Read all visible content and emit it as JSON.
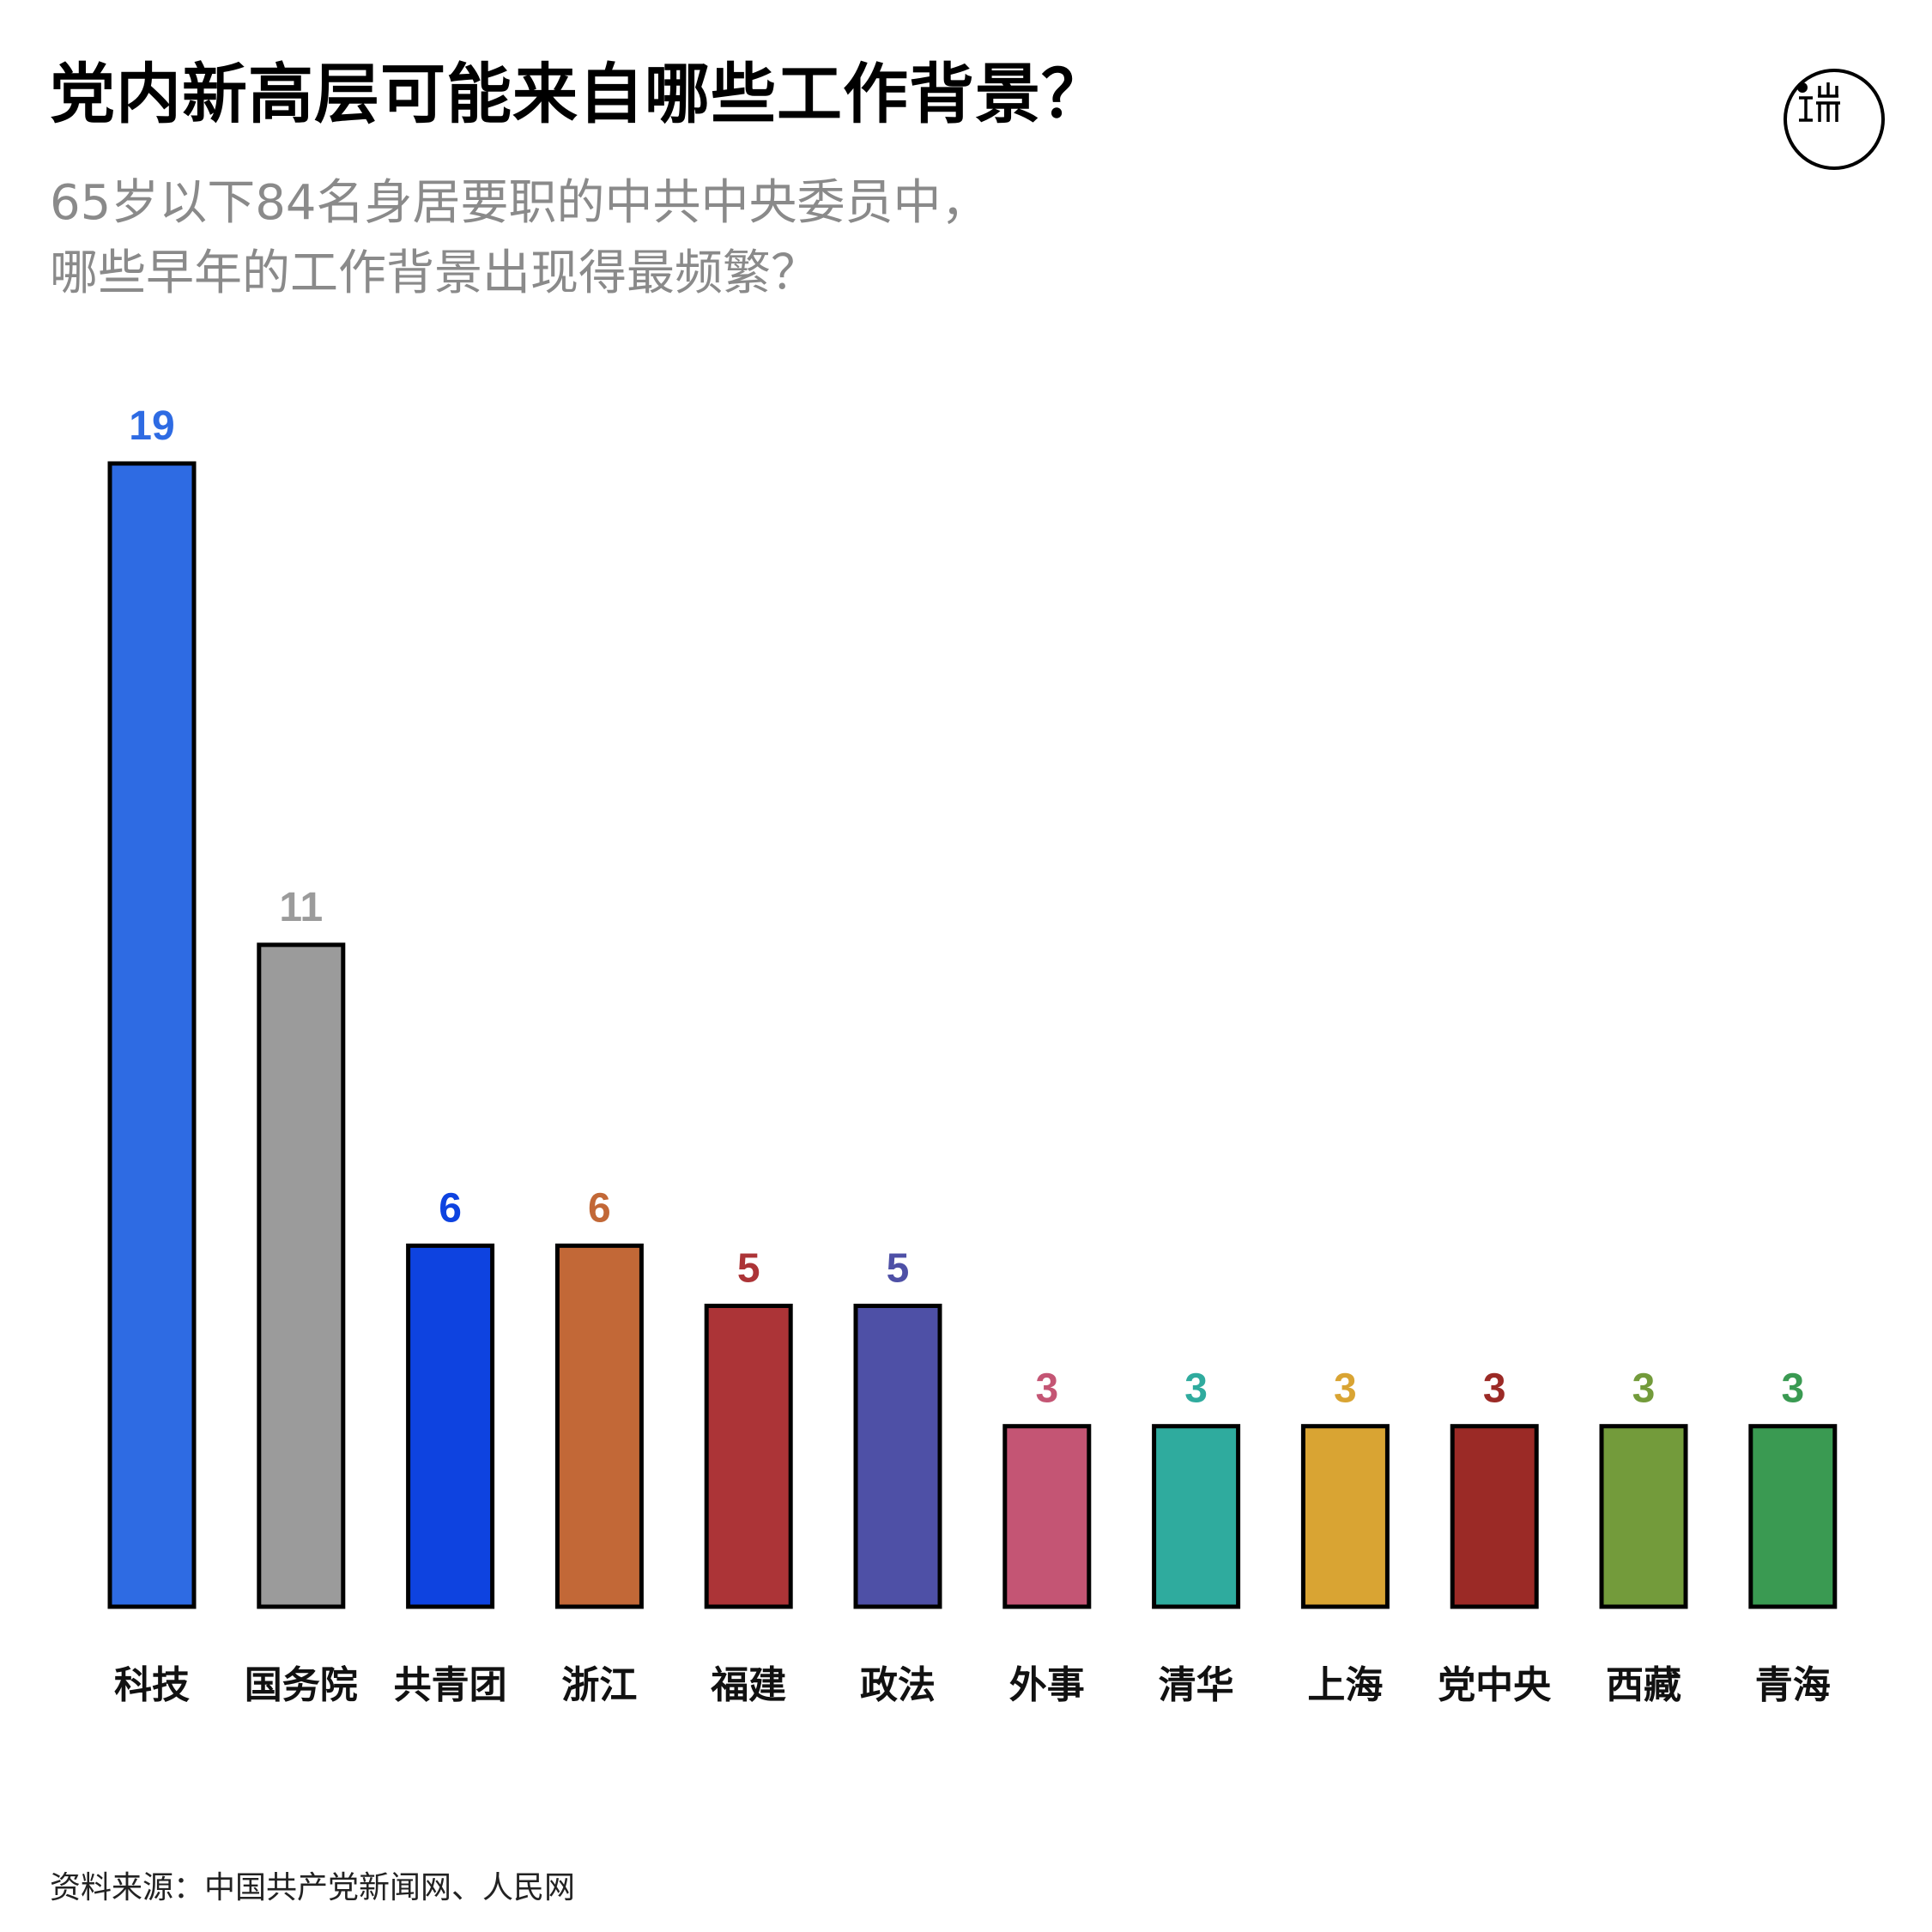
{
  "header": {
    "title": "党内新高层可能来自哪些工作背景？",
    "subtitle_line1": "65岁以下84名身居要职的中共中央委员中，",
    "subtitle_line2": "哪些早年的工作背景出现得最频繁？"
  },
  "logo": {
    "icon": "initium-logo-icon"
  },
  "chart_data": {
    "type": "bar",
    "title": "党内新高层可能来自哪些工作背景？",
    "categories": [
      "科技",
      "国务院",
      "共青团",
      "浙江",
      "福建",
      "政法",
      "外事",
      "清华",
      "上海",
      "党中央",
      "西藏",
      "青海"
    ],
    "values": [
      19,
      11,
      6,
      6,
      5,
      5,
      3,
      3,
      3,
      3,
      3,
      3
    ],
    "colors": [
      "#2e6be3",
      "#9b9b9b",
      "#0e43e0",
      "#c26837",
      "#ac3437",
      "#4e50a6",
      "#c45574",
      "#2fab9e",
      "#d9a433",
      "#9b2a26",
      "#739b3b",
      "#3a9a52"
    ],
    "label_colors": [
      "#2e6be3",
      "#9b9b9b",
      "#0e43e0",
      "#c26837",
      "#ac3437",
      "#4e50a6",
      "#c45574",
      "#2fab9e",
      "#d9a433",
      "#9b2a26",
      "#739b3b",
      "#3a9a52"
    ],
    "ylim": [
      0,
      19
    ],
    "xlabel": "",
    "ylabel": "",
    "grid": false
  },
  "footer": {
    "source": "资料来源：中国共产党新闻网、人民网"
  }
}
